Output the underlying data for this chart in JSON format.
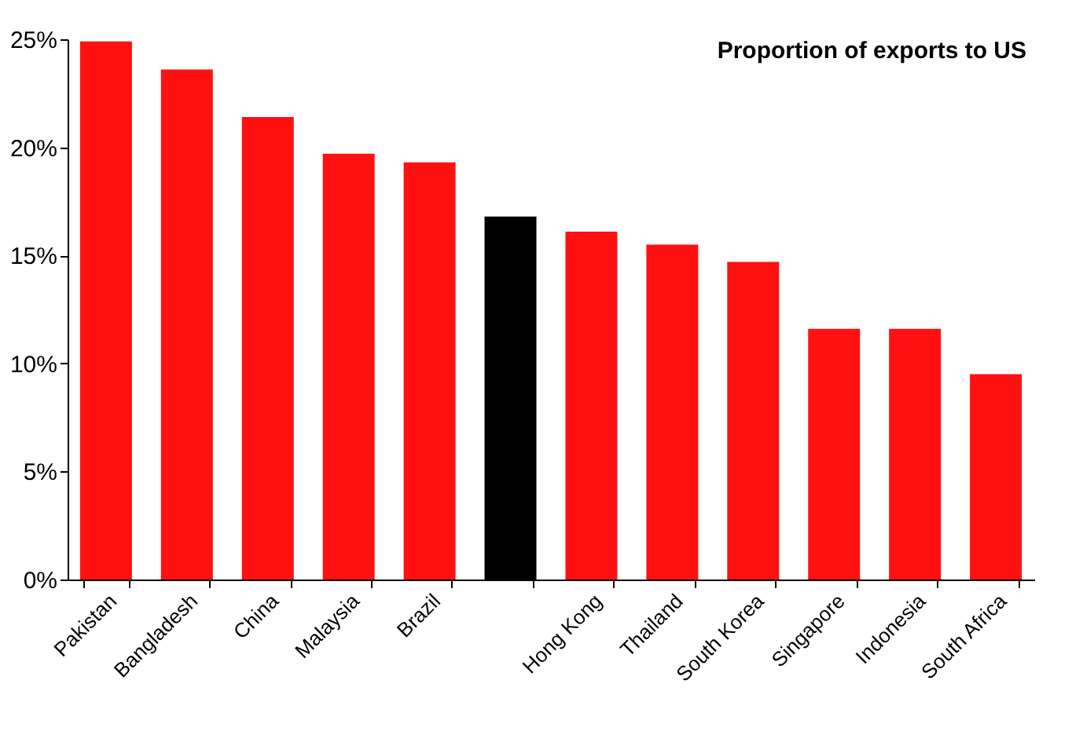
{
  "chart_data": {
    "type": "bar",
    "title": "Proportion of exports to US",
    "categories": [
      "Pakistan",
      "Bangladesh",
      "China",
      "Malaysia",
      "Brazil",
      null,
      "Hong Kong",
      "Thailand",
      "South Korea",
      "Singapore",
      "Indonesia",
      "South Africa"
    ],
    "values": [
      24.9,
      23.6,
      21.4,
      19.7,
      19.3,
      16.8,
      16.1,
      15.5,
      14.7,
      11.6,
      11.6,
      9.5
    ],
    "colors": [
      "#ff1111",
      "#ff1111",
      "#ff1111",
      "#ff1111",
      "#ff1111",
      "#000000",
      "#ff1111",
      "#ff1111",
      "#ff1111",
      "#ff1111",
      "#ff1111",
      "#ff1111"
    ],
    "ylim": [
      0,
      25
    ],
    "yticks": [
      {
        "value": 0,
        "label": "0%"
      },
      {
        "value": 5,
        "label": "5%"
      },
      {
        "value": 10,
        "label": "10%"
      },
      {
        "value": 15,
        "label": "15%"
      },
      {
        "value": 20,
        "label": "20%"
      },
      {
        "value": 25,
        "label": "25%"
      }
    ],
    "grid": false
  }
}
